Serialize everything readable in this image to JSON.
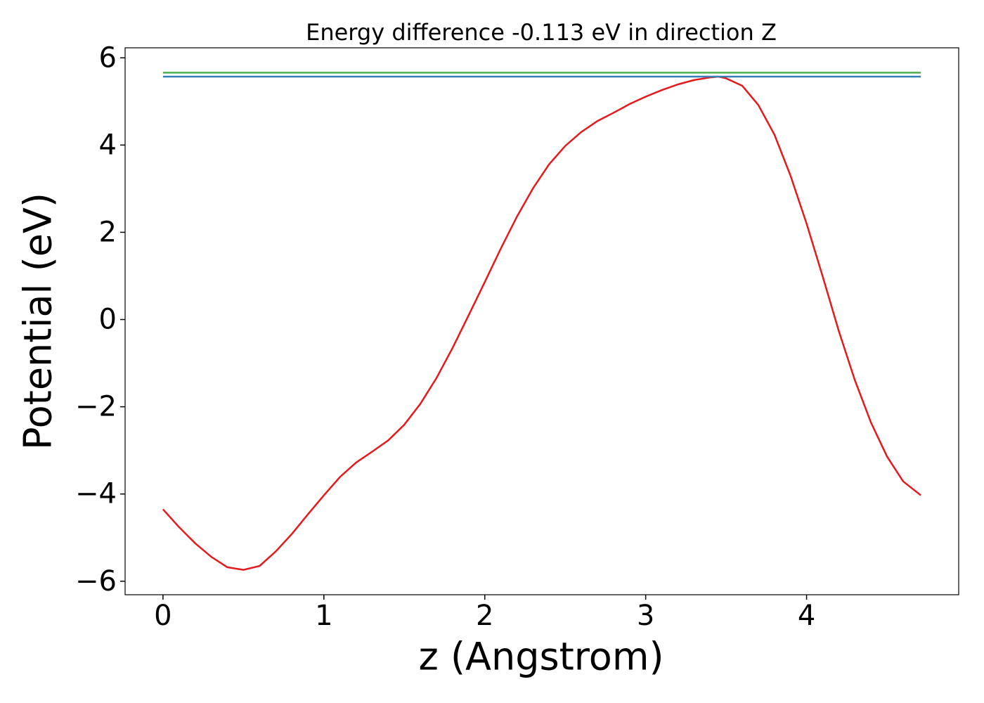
{
  "chart_data": {
    "type": "line",
    "title": "Energy difference -0.113 eV in direction Z",
    "xlabel": "z (Angstrom)",
    "ylabel": "Potential (eV)",
    "xlim": [
      -0.2355,
      4.9455
    ],
    "ylim": [
      -6.31,
      6.23
    ],
    "xticks": [
      0,
      1,
      2,
      3,
      4
    ],
    "yticks": [
      {
        "value": -6,
        "label": "−6"
      },
      {
        "value": -4,
        "label": "−4"
      },
      {
        "value": -2,
        "label": "−2"
      },
      0,
      2,
      4,
      6
    ],
    "series": [
      {
        "color": "#e41a1c",
        "x": [
          0,
          0.1,
          0.2,
          0.3,
          0.4,
          0.5,
          0.6,
          0.7,
          0.8,
          0.9,
          1.0,
          1.1,
          1.2,
          1.3,
          1.4,
          1.5,
          1.6,
          1.7,
          1.8,
          1.9,
          2.0,
          2.1,
          2.2,
          2.3,
          2.4,
          2.5,
          2.6,
          2.7,
          2.8,
          2.9,
          3.0,
          3.1,
          3.2,
          3.3,
          3.4,
          3.45,
          3.5,
          3.6,
          3.7,
          3.8,
          3.9,
          4.0,
          4.1,
          4.2,
          4.3,
          4.4,
          4.5,
          4.6,
          4.71
        ],
        "values": [
          -4.35,
          -4.76,
          -5.13,
          -5.44,
          -5.68,
          -5.74,
          -5.65,
          -5.32,
          -4.92,
          -4.47,
          -4.03,
          -3.61,
          -3.28,
          -3.03,
          -2.77,
          -2.41,
          -1.93,
          -1.34,
          -0.65,
          0.1,
          0.86,
          1.63,
          2.36,
          3.01,
          3.56,
          3.98,
          4.3,
          4.55,
          4.74,
          4.94,
          5.11,
          5.26,
          5.39,
          5.49,
          5.55,
          5.57,
          5.53,
          5.36,
          4.92,
          4.24,
          3.3,
          2.2,
          0.99,
          -0.26,
          -1.39,
          -2.36,
          -3.14,
          -3.71,
          -4.03
        ]
      },
      {
        "color": "#377eb8",
        "x": [
          0,
          4.71
        ],
        "values": [
          5.57,
          5.57
        ]
      },
      {
        "color": "#4daf4a",
        "x": [
          0,
          4.71
        ],
        "values": [
          5.66,
          5.66
        ]
      }
    ]
  }
}
